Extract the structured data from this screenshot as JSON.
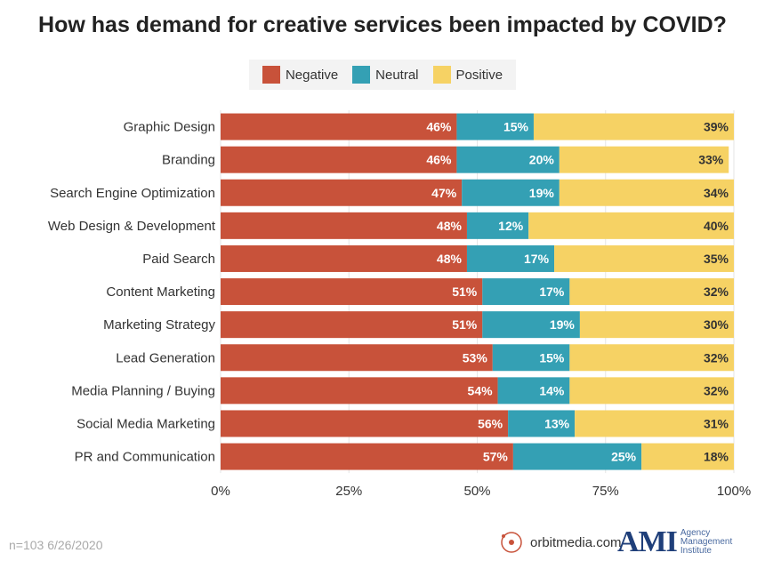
{
  "chart_data": {
    "type": "bar",
    "orientation": "horizontal",
    "stacked": true,
    "title": "How has demand for creative services been impacted by COVID?",
    "categories": [
      "Graphic Design",
      "Branding",
      "Search Engine Optimization",
      "Web Design & Development",
      "Paid Search",
      "Content Marketing",
      "Marketing Strategy",
      "Lead Generation",
      "Media Planning / Buying",
      "Social Media Marketing",
      "PR and Communication"
    ],
    "series": [
      {
        "name": "Negative",
        "color": "#c8523a",
        "values": [
          46,
          46,
          47,
          48,
          48,
          51,
          51,
          53,
          54,
          56,
          57
        ]
      },
      {
        "name": "Neutral",
        "color": "#34a0b4",
        "values": [
          15,
          20,
          19,
          12,
          17,
          17,
          19,
          15,
          14,
          13,
          25
        ]
      },
      {
        "name": "Positive",
        "color": "#f6d264",
        "values": [
          39,
          33,
          34,
          40,
          35,
          32,
          30,
          32,
          32,
          31,
          18
        ]
      }
    ],
    "xlim": [
      0,
      100
    ],
    "xticks": [
      "0%",
      "25%",
      "50%",
      "75%",
      "100%"
    ],
    "grid": true,
    "legend_position": "top"
  },
  "footnote": "n=103 6/26/2020",
  "logos": {
    "orbit": "orbitmedia.com",
    "ami": "AMI",
    "ami_sub": "Agency Management Institute"
  }
}
